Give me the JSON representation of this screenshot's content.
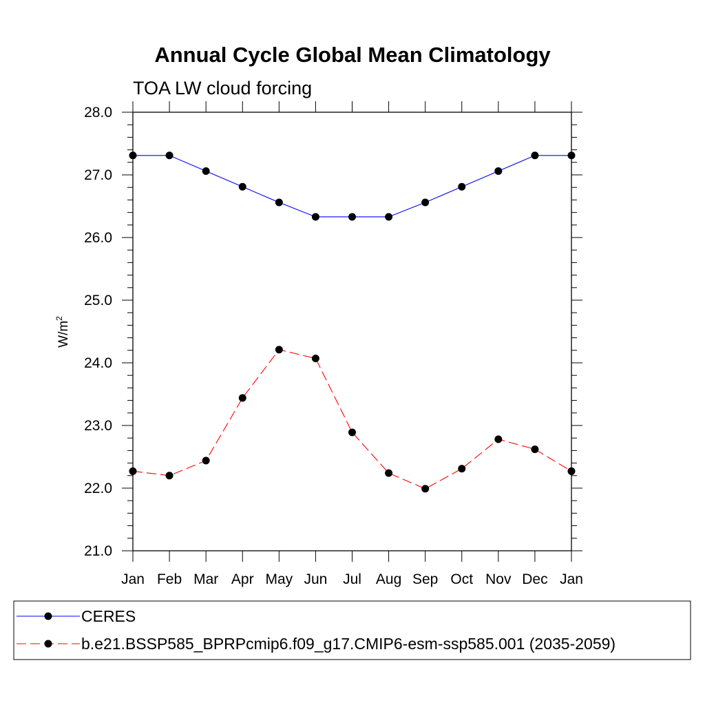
{
  "chart_data": {
    "type": "line",
    "title": "Annual Cycle Global Mean Climatology",
    "subtitle": "TOA LW cloud forcing",
    "ylabel": "W/m",
    "ylabel_sup": "2",
    "xlabel": "",
    "categories": [
      "Jan",
      "Feb",
      "Mar",
      "Apr",
      "May",
      "Jun",
      "Jul",
      "Aug",
      "Sep",
      "Oct",
      "Nov",
      "Dec",
      "Jan"
    ],
    "ylim": [
      21.0,
      28.0
    ],
    "yticks": [
      "21.0",
      "22.0",
      "23.0",
      "24.0",
      "25.0",
      "26.0",
      "27.0",
      "28.0"
    ],
    "ytick_values": [
      21,
      22,
      23,
      24,
      25,
      26,
      27,
      28
    ],
    "series": [
      {
        "name": "CERES",
        "color": "#0000ff",
        "dash": "solid",
        "values": [
          27.31,
          27.31,
          27.06,
          26.81,
          26.56,
          26.33,
          26.33,
          26.33,
          26.56,
          26.81,
          27.06,
          27.31,
          27.31
        ]
      },
      {
        "name": "b.e21.BSSP585_BPRPcmip6.f09_g17.CMIP6-esm-ssp585.001 (2035-2059)",
        "color": "#ff0000",
        "dash": "dashed",
        "values": [
          22.27,
          22.2,
          22.44,
          23.44,
          24.21,
          24.07,
          22.89,
          22.24,
          21.99,
          22.31,
          22.78,
          22.62,
          22.27
        ]
      }
    ],
    "grid": false,
    "legend_position": "bottom"
  }
}
